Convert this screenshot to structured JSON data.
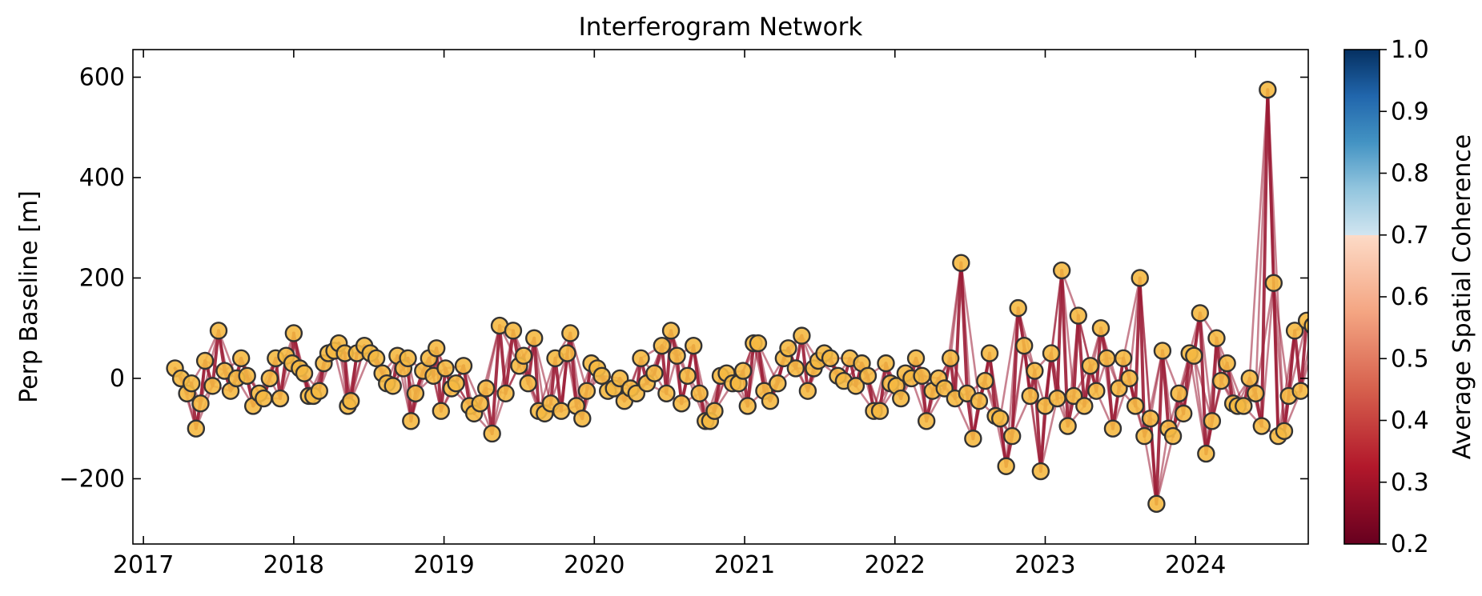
{
  "chart_data": {
    "type": "scatter",
    "title": "Interferogram Network",
    "ylabel": "Perp Baseline [m]",
    "xlabel": "",
    "xlim": [
      2016.93,
      2024.75
    ],
    "ylim": [
      -330,
      655
    ],
    "x_ticks": [
      "2017",
      "2018",
      "2019",
      "2020",
      "2021",
      "2022",
      "2023",
      "2024"
    ],
    "y_ticks": [
      -200,
      0,
      200,
      400,
      600
    ],
    "y_tick_labels": [
      "−200",
      "0",
      "200",
      "400",
      "600"
    ],
    "colorbar": {
      "label": "Average Spatial Coherence",
      "range": [
        0.2,
        1.0
      ],
      "ticks": [
        "0.2",
        "0.3",
        "0.4",
        "0.5",
        "0.6",
        "0.7",
        "0.8",
        "0.9",
        "1.0"
      ],
      "colors": [
        "#67001f",
        "#b2182b",
        "#d6604d",
        "#f4a582",
        "#fddbc7",
        "#d1e5f0",
        "#92c5de",
        "#4393c3",
        "#2166ac",
        "#053061"
      ],
      "visible_range": [
        0.7,
        1.0
      ]
    },
    "network": {
      "link_color": "#9b1c35",
      "node_fill": "#f5b942",
      "node_edge": "#333333",
      "max_links_per_node": 3,
      "note_coherence": "all links approx 0.3"
    },
    "acquisitions": [
      [
        2017.21,
        20
      ],
      [
        2017.25,
        0
      ],
      [
        2017.29,
        -30
      ],
      [
        2017.32,
        -10
      ],
      [
        2017.35,
        -100
      ],
      [
        2017.38,
        -50
      ],
      [
        2017.41,
        35
      ],
      [
        2017.46,
        -15
      ],
      [
        2017.5,
        95
      ],
      [
        2017.54,
        15
      ],
      [
        2017.58,
        -25
      ],
      [
        2017.62,
        0
      ],
      [
        2017.65,
        40
      ],
      [
        2017.69,
        5
      ],
      [
        2017.73,
        -55
      ],
      [
        2017.77,
        -30
      ],
      [
        2017.8,
        -40
      ],
      [
        2017.84,
        0
      ],
      [
        2017.88,
        40
      ],
      [
        2017.91,
        -40
      ],
      [
        2017.95,
        45
      ],
      [
        2017.99,
        30
      ],
      [
        2018.0,
        90
      ],
      [
        2018.04,
        20
      ],
      [
        2018.07,
        10
      ],
      [
        2018.1,
        -35
      ],
      [
        2018.13,
        -35
      ],
      [
        2018.17,
        -25
      ],
      [
        2018.2,
        30
      ],
      [
        2018.23,
        50
      ],
      [
        2018.27,
        55
      ],
      [
        2018.3,
        70
      ],
      [
        2018.34,
        50
      ],
      [
        2018.36,
        -55
      ],
      [
        2018.38,
        -45
      ],
      [
        2018.42,
        50
      ],
      [
        2018.47,
        65
      ],
      [
        2018.51,
        50
      ],
      [
        2018.55,
        40
      ],
      [
        2018.59,
        10
      ],
      [
        2018.62,
        -10
      ],
      [
        2018.66,
        -15
      ],
      [
        2018.69,
        45
      ],
      [
        2018.73,
        20
      ],
      [
        2018.76,
        40
      ],
      [
        2018.78,
        -85
      ],
      [
        2018.81,
        -30
      ],
      [
        2018.86,
        15
      ],
      [
        2018.9,
        40
      ],
      [
        2018.93,
        5
      ],
      [
        2018.95,
        60
      ],
      [
        2018.98,
        -65
      ],
      [
        2019.01,
        20
      ],
      [
        2019.05,
        -20
      ],
      [
        2019.08,
        -10
      ],
      [
        2019.13,
        25
      ],
      [
        2019.17,
        -55
      ],
      [
        2019.2,
        -70
      ],
      [
        2019.24,
        -50
      ],
      [
        2019.28,
        -20
      ],
      [
        2019.32,
        -110
      ],
      [
        2019.37,
        105
      ],
      [
        2019.41,
        -30
      ],
      [
        2019.46,
        95
      ],
      [
        2019.5,
        25
      ],
      [
        2019.53,
        45
      ],
      [
        2019.56,
        -10
      ],
      [
        2019.6,
        80
      ],
      [
        2019.63,
        -65
      ],
      [
        2019.67,
        -70
      ],
      [
        2019.71,
        -50
      ],
      [
        2019.74,
        40
      ],
      [
        2019.78,
        -65
      ],
      [
        2019.82,
        50
      ],
      [
        2019.84,
        90
      ],
      [
        2019.88,
        -55
      ],
      [
        2019.92,
        -80
      ],
      [
        2019.95,
        -25
      ],
      [
        2019.98,
        30
      ],
      [
        2020.02,
        20
      ],
      [
        2020.05,
        5
      ],
      [
        2020.09,
        -25
      ],
      [
        2020.13,
        -20
      ],
      [
        2020.17,
        0
      ],
      [
        2020.2,
        -45
      ],
      [
        2020.24,
        -20
      ],
      [
        2020.28,
        -30
      ],
      [
        2020.31,
        40
      ],
      [
        2020.35,
        -10
      ],
      [
        2020.4,
        10
      ],
      [
        2020.45,
        65
      ],
      [
        2020.48,
        -30
      ],
      [
        2020.51,
        95
      ],
      [
        2020.55,
        45
      ],
      [
        2020.58,
        -50
      ],
      [
        2020.62,
        5
      ],
      [
        2020.66,
        65
      ],
      [
        2020.7,
        -30
      ],
      [
        2020.74,
        -85
      ],
      [
        2020.77,
        -85
      ],
      [
        2020.8,
        -65
      ],
      [
        2020.84,
        5
      ],
      [
        2020.88,
        10
      ],
      [
        2020.92,
        -10
      ],
      [
        2020.96,
        -10
      ],
      [
        2020.99,
        15
      ],
      [
        2021.02,
        -55
      ],
      [
        2021.06,
        70
      ],
      [
        2021.09,
        70
      ],
      [
        2021.13,
        -25
      ],
      [
        2021.17,
        -45
      ],
      [
        2021.22,
        -10
      ],
      [
        2021.26,
        40
      ],
      [
        2021.29,
        60
      ],
      [
        2021.34,
        20
      ],
      [
        2021.38,
        85
      ],
      [
        2021.42,
        -25
      ],
      [
        2021.46,
        20
      ],
      [
        2021.49,
        35
      ],
      [
        2021.53,
        50
      ],
      [
        2021.57,
        40
      ],
      [
        2021.62,
        5
      ],
      [
        2021.66,
        -5
      ],
      [
        2021.7,
        40
      ],
      [
        2021.74,
        -15
      ],
      [
        2021.78,
        30
      ],
      [
        2021.82,
        5
      ],
      [
        2021.86,
        -65
      ],
      [
        2021.9,
        -65
      ],
      [
        2021.94,
        30
      ],
      [
        2021.97,
        -10
      ],
      [
        2022.01,
        -15
      ],
      [
        2022.04,
        -40
      ],
      [
        2022.07,
        10
      ],
      [
        2022.11,
        0
      ],
      [
        2022.14,
        40
      ],
      [
        2022.18,
        5
      ],
      [
        2022.21,
        -85
      ],
      [
        2022.25,
        -25
      ],
      [
        2022.29,
        0
      ],
      [
        2022.33,
        -20
      ],
      [
        2022.37,
        40
      ],
      [
        2022.4,
        -40
      ],
      [
        2022.44,
        230
      ],
      [
        2022.48,
        -30
      ],
      [
        2022.52,
        -120
      ],
      [
        2022.56,
        -45
      ],
      [
        2022.6,
        -5
      ],
      [
        2022.63,
        50
      ],
      [
        2022.67,
        -75
      ],
      [
        2022.7,
        -80
      ],
      [
        2022.74,
        -175
      ],
      [
        2022.78,
        -115
      ],
      [
        2022.82,
        140
      ],
      [
        2022.86,
        65
      ],
      [
        2022.9,
        -35
      ],
      [
        2022.93,
        15
      ],
      [
        2022.97,
        -185
      ],
      [
        2023.0,
        -55
      ],
      [
        2023.04,
        50
      ],
      [
        2023.08,
        -40
      ],
      [
        2023.11,
        215
      ],
      [
        2023.15,
        -95
      ],
      [
        2023.19,
        -35
      ],
      [
        2023.22,
        125
      ],
      [
        2023.26,
        -55
      ],
      [
        2023.3,
        25
      ],
      [
        2023.34,
        -25
      ],
      [
        2023.37,
        100
      ],
      [
        2023.41,
        40
      ],
      [
        2023.45,
        -100
      ],
      [
        2023.49,
        -20
      ],
      [
        2023.52,
        40
      ],
      [
        2023.56,
        0
      ],
      [
        2023.6,
        -55
      ],
      [
        2023.63,
        200
      ],
      [
        2023.66,
        -115
      ],
      [
        2023.7,
        -80
      ],
      [
        2023.74,
        -250
      ],
      [
        2023.78,
        55
      ],
      [
        2023.82,
        -100
      ],
      [
        2023.85,
        -115
      ],
      [
        2023.89,
        -30
      ],
      [
        2023.92,
        -70
      ],
      [
        2023.96,
        50
      ],
      [
        2023.99,
        45
      ],
      [
        2024.03,
        130
      ],
      [
        2024.07,
        -150
      ],
      [
        2024.11,
        -85
      ],
      [
        2024.14,
        80
      ],
      [
        2024.17,
        -5
      ],
      [
        2024.21,
        30
      ],
      [
        2024.25,
        -50
      ],
      [
        2024.28,
        -55
      ],
      [
        2024.32,
        -55
      ],
      [
        2024.36,
        0
      ],
      [
        2024.4,
        -30
      ],
      [
        2024.44,
        -95
      ],
      [
        2024.48,
        575
      ],
      [
        2024.52,
        190
      ],
      [
        2024.55,
        -115
      ],
      [
        2024.59,
        -105
      ],
      [
        2024.62,
        -35
      ],
      [
        2024.66,
        95
      ],
      [
        2024.7,
        -25
      ],
      [
        2024.74,
        115
      ],
      [
        2024.78,
        105
      ],
      [
        2024.82,
        105
      ]
    ]
  }
}
